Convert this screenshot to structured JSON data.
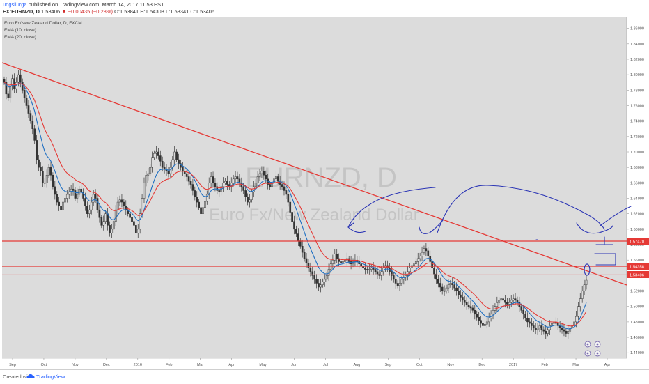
{
  "header": {
    "author": "ungsilurga",
    "published_text": "published on TradingView.com, March 14, 2017 11:53 EST",
    "symbol": "FX:EURNZD, D",
    "last_price": "1.53406",
    "direction_glyph": "▼",
    "change": "−0.00435 (−0.28%)",
    "ohlc": [
      {
        "label": "O:",
        "value": "1.53841"
      },
      {
        "label": "H:",
        "value": "1.54308"
      },
      {
        "label": "L:",
        "value": "1.53341"
      },
      {
        "label": "C:",
        "value": "1.53406"
      }
    ]
  },
  "legend": {
    "title": "Euro Fx/New Zealand Dollar, D, FXCM",
    "indicators": [
      "EMA (10, close)",
      "EMA (20, close)"
    ]
  },
  "watermark": {
    "symbol": "EURNZD, D",
    "name": "Euro Fx/New Zealand Dollar"
  },
  "footer": {
    "created_with": "Created with",
    "brand": "TradingView"
  },
  "colors": {
    "background": "#dcdcdc",
    "ema_fast": "#1e6fc2",
    "ema_slow": "#e53935",
    "candle": "#333333",
    "trendline": "#e53935",
    "horizontal_line": "#e53935",
    "annotation": "#2b35b5",
    "price_badge": "#e53935"
  },
  "chart_data": {
    "type": "candlestick",
    "title": "Euro Fx/New Zealand Dollar, D, FXCM",
    "symbol": "FX:EURNZD",
    "interval": "D",
    "x_axis_labels": [
      "Sep",
      "Oct",
      "Nov",
      "Dec",
      "2016",
      "Feb",
      "Mar",
      "Apr",
      "May",
      "Jun",
      "Jul",
      "Aug",
      "Sep",
      "Oct",
      "Nov",
      "Dec",
      "2017",
      "Feb",
      "Mar",
      "Apr"
    ],
    "y_axis_labels": [
      "1.86000",
      "1.84000",
      "1.82000",
      "1.80000",
      "1.78000",
      "1.76000",
      "1.74000",
      "1.72000",
      "1.70000",
      "1.68000",
      "1.66000",
      "1.64000",
      "1.62000",
      "1.60000",
      "1.58000",
      "1.56000",
      "1.54000",
      "1.52000",
      "1.50000",
      "1.48000",
      "1.46000",
      "1.44000"
    ],
    "ylim": [
      1.433,
      1.875
    ],
    "grid": false,
    "price_badges": [
      "1.57470",
      "1.54358",
      "1.53406"
    ],
    "closes": [
      1.79,
      1.775,
      1.77,
      1.785,
      1.795,
      1.782,
      1.79,
      1.8,
      1.79,
      1.78,
      1.77,
      1.76,
      1.75,
      1.74,
      1.73,
      1.715,
      1.69,
      1.68,
      1.675,
      1.66,
      1.66,
      1.67,
      1.68,
      1.67,
      1.655,
      1.645,
      1.635,
      1.63,
      1.625,
      1.635,
      1.64,
      1.645,
      1.648,
      1.652,
      1.65,
      1.64,
      1.645,
      1.652,
      1.648,
      1.64,
      1.63,
      1.62,
      1.625,
      1.635,
      1.645,
      1.64,
      1.625,
      1.615,
      1.605,
      1.61,
      1.62,
      1.605,
      1.595,
      1.6,
      1.61,
      1.625,
      1.635,
      1.638,
      1.635,
      1.63,
      1.625,
      1.62,
      1.615,
      1.61,
      1.605,
      1.595,
      1.6,
      1.62,
      1.64,
      1.66,
      1.67,
      1.672,
      1.68,
      1.693,
      1.698,
      1.7,
      1.695,
      1.688,
      1.68,
      1.678,
      1.675,
      1.672,
      1.68,
      1.69,
      1.7,
      1.69,
      1.685,
      1.68,
      1.675,
      1.672,
      1.668,
      1.662,
      1.658,
      1.65,
      1.642,
      1.635,
      1.628,
      1.62,
      1.628,
      1.636,
      1.645,
      1.66,
      1.668,
      1.66,
      1.655,
      1.65,
      1.648,
      1.655,
      1.66,
      1.662,
      1.658,
      1.655,
      1.66,
      1.665,
      1.668,
      1.665,
      1.66,
      1.655,
      1.65,
      1.642,
      1.635,
      1.638,
      1.648,
      1.655,
      1.66,
      1.668,
      1.672,
      1.675,
      1.67,
      1.665,
      1.658,
      1.655,
      1.66,
      1.665,
      1.668,
      1.662,
      1.658,
      1.655,
      1.65,
      1.645,
      1.635,
      1.622,
      1.61,
      1.6,
      1.594,
      1.585,
      1.578,
      1.57,
      1.562,
      1.556,
      1.55,
      1.545,
      1.54,
      1.535,
      1.53,
      1.525,
      1.528,
      1.532,
      1.535,
      1.54,
      1.548,
      1.555,
      1.56,
      1.568,
      1.562,
      1.558,
      1.556,
      1.558,
      1.56,
      1.562,
      1.558,
      1.555,
      1.558,
      1.56,
      1.558,
      1.555,
      1.552,
      1.55,
      1.548,
      1.547,
      1.548,
      1.55,
      1.548,
      1.545,
      1.542,
      1.54,
      1.545,
      1.55,
      1.553,
      1.55,
      1.545,
      1.54,
      1.535,
      1.53,
      1.527,
      1.53,
      1.535,
      1.538,
      1.54,
      1.545,
      1.55,
      1.553,
      1.555,
      1.558,
      1.562,
      1.565,
      1.57,
      1.575,
      1.572,
      1.565,
      1.558,
      1.55,
      1.542,
      1.535,
      1.53,
      1.525,
      1.52,
      1.52,
      1.524,
      1.528,
      1.53,
      1.528,
      1.524,
      1.52,
      1.515,
      1.512,
      1.508,
      1.505,
      1.502,
      1.5,
      1.498,
      1.495,
      1.49,
      1.486,
      1.482,
      1.478,
      1.475,
      1.477,
      1.48,
      1.485,
      1.49,
      1.495,
      1.5,
      1.505,
      1.508,
      1.51,
      1.508,
      1.505,
      1.503,
      1.505,
      1.508,
      1.51,
      1.508,
      1.505,
      1.5,
      1.495,
      1.49,
      1.485,
      1.48,
      1.478,
      1.475,
      1.472,
      1.47,
      1.472,
      1.475,
      1.47,
      1.468,
      1.465,
      1.47,
      1.475,
      1.478,
      1.48,
      1.478,
      1.475,
      1.472,
      1.47,
      1.468,
      1.465,
      1.468,
      1.472,
      1.475,
      1.48,
      1.487,
      1.5,
      1.51,
      1.52,
      1.528,
      1.534
    ]
  }
}
